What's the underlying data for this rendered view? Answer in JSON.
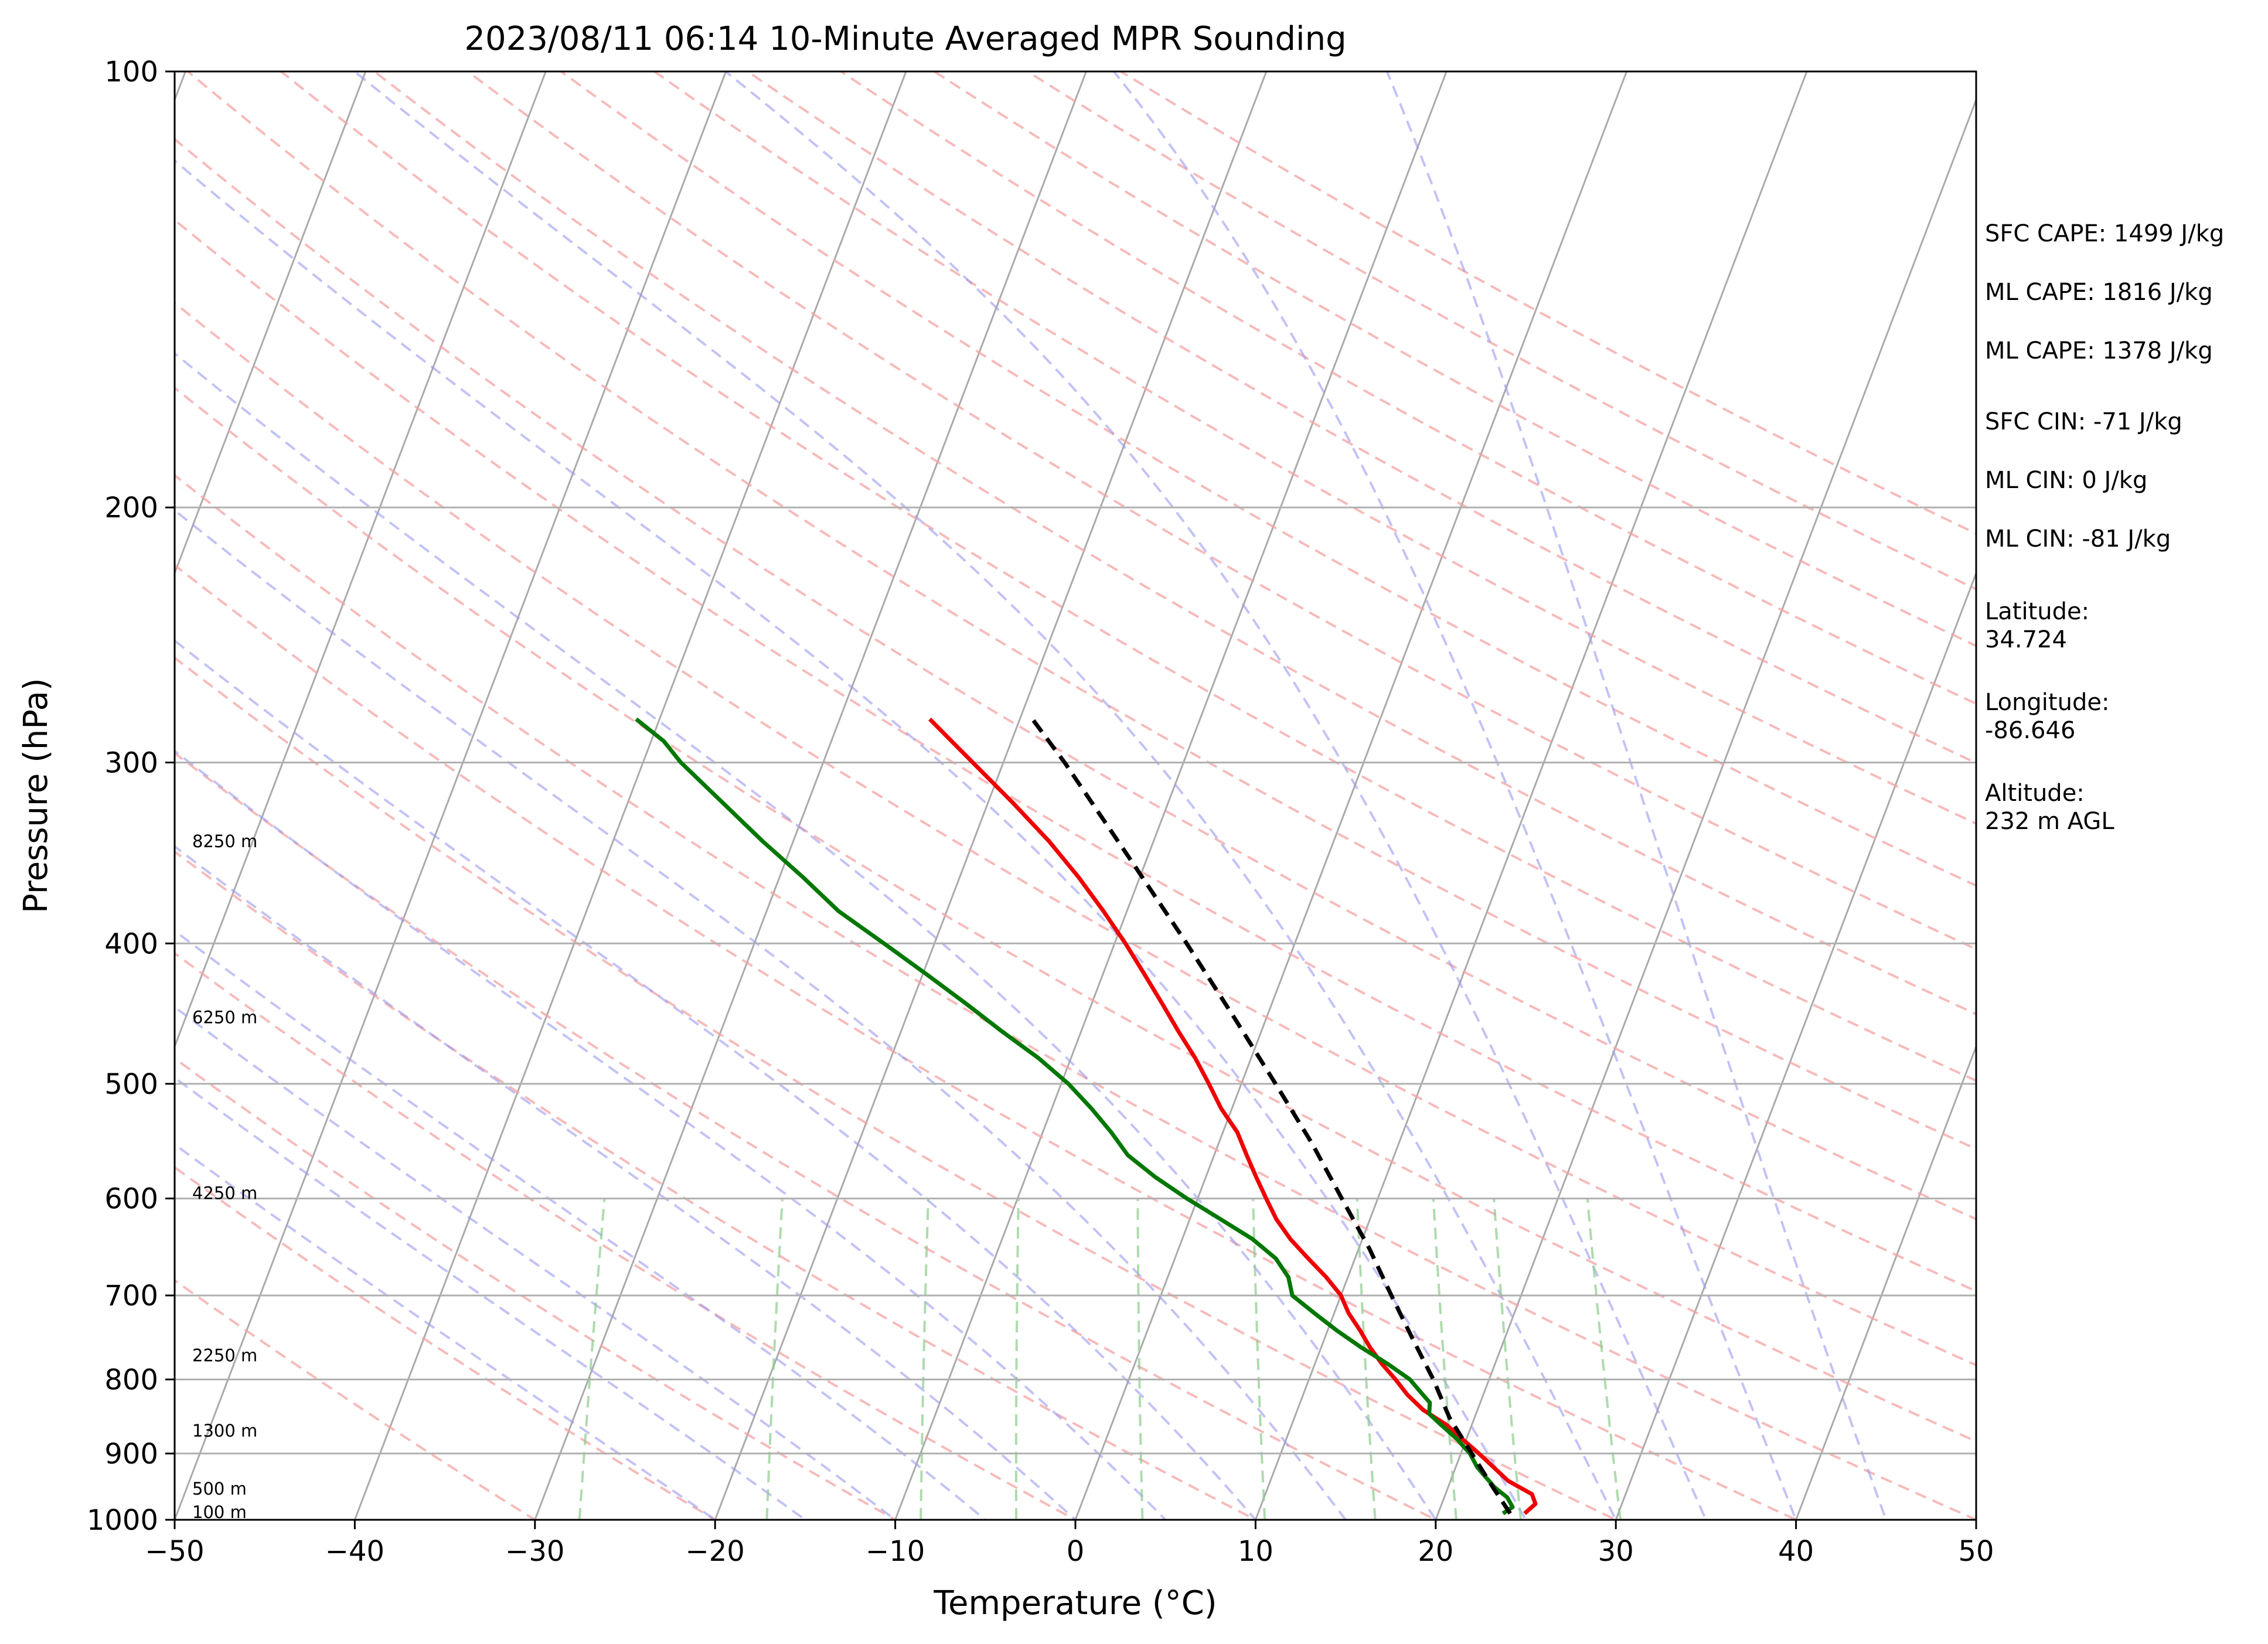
{
  "chart_data": {
    "type": "line",
    "title": "2023/08/11 06:14 10-Minute Averaged MPR Sounding",
    "xlabel": "Temperature (°C)",
    "ylabel": "Pressure (hPa)",
    "xlim": [
      -50,
      50
    ],
    "ylim": [
      1000,
      100
    ],
    "yscale": "log",
    "x_ticks": [
      -50,
      -40,
      -30,
      -20,
      -10,
      0,
      10,
      20,
      30,
      40,
      50
    ],
    "x_tick_labels": [
      "−50",
      "−40",
      "−30",
      "−20",
      "−10",
      "0",
      "10",
      "20",
      "30",
      "40",
      "50"
    ],
    "y_ticks": [
      100,
      200,
      300,
      400,
      500,
      600,
      700,
      800,
      900,
      1000
    ],
    "y_tick_labels": [
      "100",
      "200",
      "300",
      "400",
      "500",
      "600",
      "700",
      "800",
      "900",
      "1000"
    ],
    "grid": true,
    "skew": "skew-T log-P",
    "height_labels": [
      {
        "pressure": 340,
        "label": "8250 m"
      },
      {
        "pressure": 450,
        "label": "6250 m"
      },
      {
        "pressure": 595,
        "label": "4250 m"
      },
      {
        "pressure": 770,
        "label": "2250 m"
      },
      {
        "pressure": 868,
        "label": "1300 m"
      },
      {
        "pressure": 952,
        "label": "500 m"
      },
      {
        "pressure": 988,
        "label": "100 m"
      }
    ],
    "series": [
      {
        "color": "#ee0000",
        "style": "solid",
        "points": [
          {
            "p": 990,
            "t": 24.8
          },
          {
            "p": 975,
            "t": 25.2
          },
          {
            "p": 960,
            "t": 24.8
          },
          {
            "p": 940,
            "t": 23.2
          },
          {
            "p": 900,
            "t": 21.0
          },
          {
            "p": 880,
            "t": 19.8
          },
          {
            "p": 860,
            "t": 18.6
          },
          {
            "p": 840,
            "t": 17.0
          },
          {
            "p": 820,
            "t": 15.8
          },
          {
            "p": 800,
            "t": 14.8
          },
          {
            "p": 780,
            "t": 13.7
          },
          {
            "p": 760,
            "t": 12.7
          },
          {
            "p": 740,
            "t": 11.8
          },
          {
            "p": 720,
            "t": 10.8
          },
          {
            "p": 700,
            "t": 10.0
          },
          {
            "p": 680,
            "t": 8.8
          },
          {
            "p": 660,
            "t": 7.4
          },
          {
            "p": 640,
            "t": 6.0
          },
          {
            "p": 620,
            "t": 4.8
          },
          {
            "p": 600,
            "t": 3.8
          },
          {
            "p": 580,
            "t": 2.8
          },
          {
            "p": 560,
            "t": 1.8
          },
          {
            "p": 540,
            "t": 0.8
          },
          {
            "p": 520,
            "t": -0.6
          },
          {
            "p": 500,
            "t": -1.8
          },
          {
            "p": 480,
            "t": -3.1
          },
          {
            "p": 460,
            "t": -4.6
          },
          {
            "p": 440,
            "t": -6.1
          },
          {
            "p": 420,
            "t": -7.7
          },
          {
            "p": 400,
            "t": -9.4
          },
          {
            "p": 380,
            "t": -11.3
          },
          {
            "p": 360,
            "t": -13.4
          },
          {
            "p": 340,
            "t": -15.8
          },
          {
            "p": 320,
            "t": -18.6
          },
          {
            "p": 300,
            "t": -21.7
          },
          {
            "p": 280,
            "t": -25.0
          }
        ]
      },
      {
        "color": "#007700",
        "style": "solid",
        "points": [
          {
            "p": 990,
            "t": 23.6
          },
          {
            "p": 980,
            "t": 24.0
          },
          {
            "p": 965,
            "t": 23.5
          },
          {
            "p": 950,
            "t": 22.6
          },
          {
            "p": 935,
            "t": 21.9
          },
          {
            "p": 920,
            "t": 21.2
          },
          {
            "p": 900,
            "t": 20.5
          },
          {
            "p": 880,
            "t": 19.5
          },
          {
            "p": 860,
            "t": 18.3
          },
          {
            "p": 845,
            "t": 17.4
          },
          {
            "p": 830,
            "t": 17.2
          },
          {
            "p": 815,
            "t": 16.4
          },
          {
            "p": 800,
            "t": 15.6
          },
          {
            "p": 780,
            "t": 14.0
          },
          {
            "p": 760,
            "t": 12.2
          },
          {
            "p": 740,
            "t": 10.5
          },
          {
            "p": 720,
            "t": 8.9
          },
          {
            "p": 700,
            "t": 7.3
          },
          {
            "p": 680,
            "t": 6.7
          },
          {
            "p": 660,
            "t": 5.6
          },
          {
            "p": 640,
            "t": 3.9
          },
          {
            "p": 620,
            "t": 1.7
          },
          {
            "p": 600,
            "t": -0.6
          },
          {
            "p": 580,
            "t": -2.8
          },
          {
            "p": 560,
            "t": -4.8
          },
          {
            "p": 540,
            "t": -6.2
          },
          {
            "p": 520,
            "t": -7.8
          },
          {
            "p": 500,
            "t": -9.6
          },
          {
            "p": 480,
            "t": -11.8
          },
          {
            "p": 460,
            "t": -14.4
          },
          {
            "p": 440,
            "t": -17.0
          },
          {
            "p": 420,
            "t": -19.8
          },
          {
            "p": 400,
            "t": -22.8
          },
          {
            "p": 380,
            "t": -26.0
          },
          {
            "p": 360,
            "t": -28.7
          },
          {
            "p": 340,
            "t": -31.7
          },
          {
            "p": 320,
            "t": -34.7
          },
          {
            "p": 300,
            "t": -37.9
          },
          {
            "p": 290,
            "t": -39.3
          },
          {
            "p": 280,
            "t": -41.3
          }
        ]
      },
      {
        "color": "#000000",
        "style": "dashed",
        "points": [
          {
            "p": 990,
            "t": 24.0
          },
          {
            "p": 950,
            "t": 22.5
          },
          {
            "p": 900,
            "t": 20.6
          },
          {
            "p": 850,
            "t": 18.6
          },
          {
            "p": 800,
            "t": 16.9
          },
          {
            "p": 750,
            "t": 14.9
          },
          {
            "p": 700,
            "t": 12.8
          },
          {
            "p": 650,
            "t": 10.6
          },
          {
            "p": 600,
            "t": 8.0
          },
          {
            "p": 550,
            "t": 5.2
          },
          {
            "p": 500,
            "t": 1.9
          },
          {
            "p": 450,
            "t": -1.8
          },
          {
            "p": 400,
            "t": -6.0
          },
          {
            "p": 350,
            "t": -10.9
          },
          {
            "p": 300,
            "t": -16.6
          },
          {
            "p": 280,
            "t": -19.3
          }
        ]
      }
    ]
  },
  "info": [
    "SFC CAPE: 1499 J/kg",
    "ML CAPE: 1816 J/kg",
    "ML CAPE: 1378 J/kg",
    "SFC CIN: -71 J/kg",
    "ML CIN: 0 J/kg",
    "ML CIN: -81 J/kg",
    "Latitude:",
    "34.724",
    "Longitude:",
    "-86.646",
    "Altitude:",
    "232 m AGL"
  ]
}
